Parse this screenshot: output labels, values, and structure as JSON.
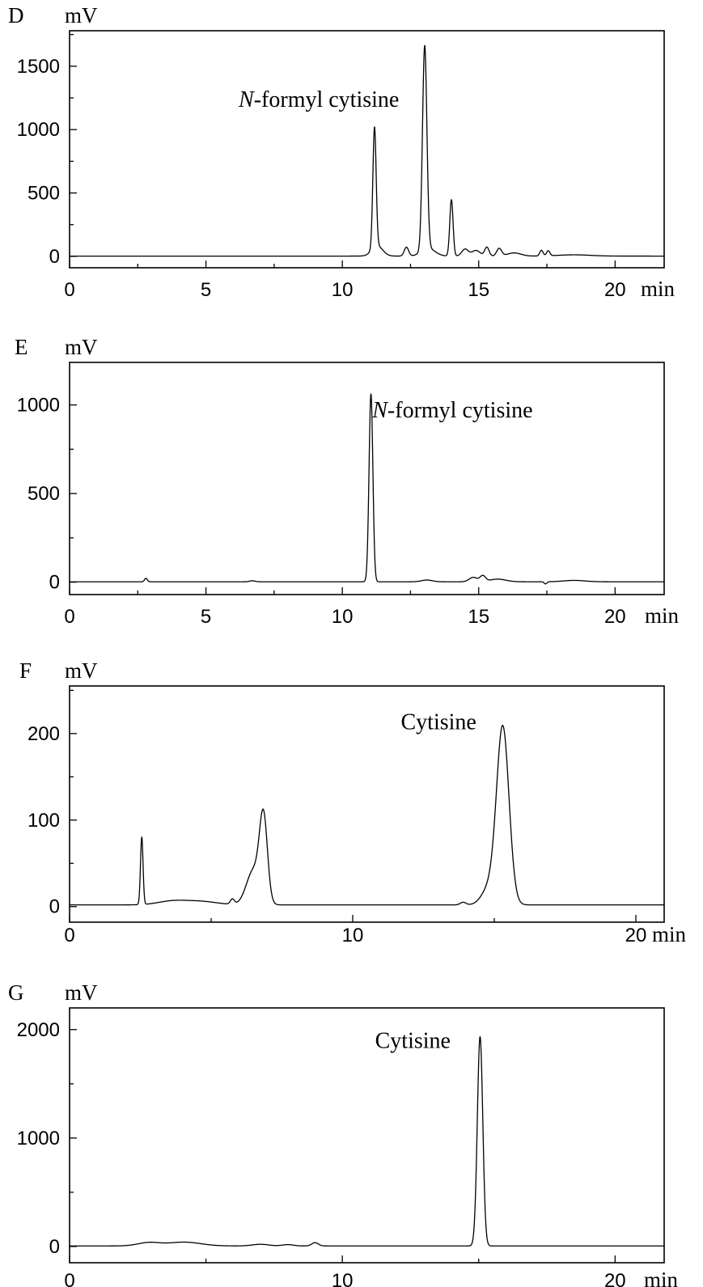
{
  "chart_data": [
    {
      "type": "line",
      "panel_label": "D",
      "ylabel": "mV",
      "xlabel": "min",
      "xlim": [
        0,
        21.8
      ],
      "ylim": [
        -90,
        1780
      ],
      "x_ticks": [
        0,
        5,
        10,
        15,
        20
      ],
      "y_ticks": [
        0,
        500,
        1000,
        1500
      ],
      "annotations": [
        {
          "text_italic": "N",
          "text": "-formyl cytisine",
          "x": 6.2,
          "y": 1180
        }
      ],
      "baseline": 2,
      "peaks": [
        {
          "t": 11.18,
          "h": 950,
          "w": 0.06
        },
        {
          "t": 11.28,
          "h": 80,
          "w": 0.2
        },
        {
          "t": 12.35,
          "h": 70,
          "w": 0.08
        },
        {
          "t": 13.02,
          "h": 1610,
          "w": 0.08
        },
        {
          "t": 13.15,
          "h": 60,
          "w": 0.25
        },
        {
          "t": 14.0,
          "h": 445,
          "w": 0.06
        },
        {
          "t": 14.5,
          "h": 55,
          "w": 0.12
        },
        {
          "t": 14.9,
          "h": 45,
          "w": 0.15
        },
        {
          "t": 15.3,
          "h": 70,
          "w": 0.08
        },
        {
          "t": 15.75,
          "h": 60,
          "w": 0.09
        },
        {
          "t": 16.3,
          "h": 25,
          "w": 0.25
        },
        {
          "t": 17.3,
          "h": 45,
          "w": 0.06
        },
        {
          "t": 17.55,
          "h": 40,
          "w": 0.06
        },
        {
          "t": 18.5,
          "h": 10,
          "w": 0.6
        }
      ]
    },
    {
      "type": "line",
      "panel_label": "E",
      "ylabel": "mV",
      "xlabel": "min",
      "xlim": [
        0,
        21.8
      ],
      "ylim": [
        -70,
        1240
      ],
      "x_ticks": [
        0,
        5,
        10,
        15,
        20
      ],
      "y_ticks": [
        0,
        500,
        1000
      ],
      "annotations": [
        {
          "text_italic": "N",
          "text": "-formyl cytisine",
          "x": 11.1,
          "y": 930
        }
      ],
      "baseline": 2,
      "peaks": [
        {
          "t": 2.8,
          "h": 20,
          "w": 0.05
        },
        {
          "t": 6.7,
          "h": 6,
          "w": 0.1
        },
        {
          "t": 11.05,
          "h": 1060,
          "w": 0.07
        },
        {
          "t": 13.1,
          "h": 10,
          "w": 0.2
        },
        {
          "t": 14.8,
          "h": 25,
          "w": 0.15
        },
        {
          "t": 15.15,
          "h": 32,
          "w": 0.1
        },
        {
          "t": 15.7,
          "h": 15,
          "w": 0.3
        },
        {
          "t": 17.45,
          "h": -12,
          "w": 0.05
        },
        {
          "t": 18.5,
          "h": 8,
          "w": 0.4
        }
      ]
    },
    {
      "type": "line",
      "panel_label": "F",
      "ylabel": "mV",
      "xlabel": "min",
      "xlim": [
        0,
        21
      ],
      "ylim": [
        -18,
        255
      ],
      "x_ticks": [
        0,
        10,
        20
      ],
      "y_ticks": [
        0,
        100,
        200
      ],
      "annotations": [
        {
          "text": "Cytisine",
          "x": 11.7,
          "y": 205
        }
      ],
      "baseline": 2,
      "peaks": [
        {
          "t": 2.55,
          "h": 78,
          "w": 0.045
        },
        {
          "t": 3.6,
          "h": 4,
          "w": 0.5
        },
        {
          "t": 4.6,
          "h": 4,
          "w": 0.6
        },
        {
          "t": 5.75,
          "h": 6,
          "w": 0.07
        },
        {
          "t": 6.5,
          "h": 40,
          "w": 0.25
        },
        {
          "t": 6.85,
          "h": 95,
          "w": 0.14
        },
        {
          "t": 15.3,
          "h": 205,
          "w": 0.22
        },
        {
          "t": 14.8,
          "h": 18,
          "w": 0.25
        },
        {
          "t": 13.9,
          "h": 3,
          "w": 0.1
        }
      ]
    },
    {
      "type": "line",
      "panel_label": "G",
      "ylabel": "mV",
      "xlabel": "min",
      "xlim": [
        0,
        21.8
      ],
      "ylim": [
        -150,
        2200
      ],
      "x_ticks": [
        0,
        10,
        20
      ],
      "y_ticks": [
        0,
        1000,
        2000
      ],
      "annotations": [
        {
          "text": "Cytisine",
          "x": 11.2,
          "y": 1830
        }
      ],
      "baseline": 5,
      "peaks": [
        {
          "t": 2.9,
          "h": 30,
          "w": 0.4
        },
        {
          "t": 4.2,
          "h": 35,
          "w": 0.6
        },
        {
          "t": 7.0,
          "h": 15,
          "w": 0.3
        },
        {
          "t": 8.0,
          "h": 12,
          "w": 0.2
        },
        {
          "t": 9.0,
          "h": 30,
          "w": 0.12
        },
        {
          "t": 15.05,
          "h": 1930,
          "w": 0.1
        }
      ]
    }
  ]
}
